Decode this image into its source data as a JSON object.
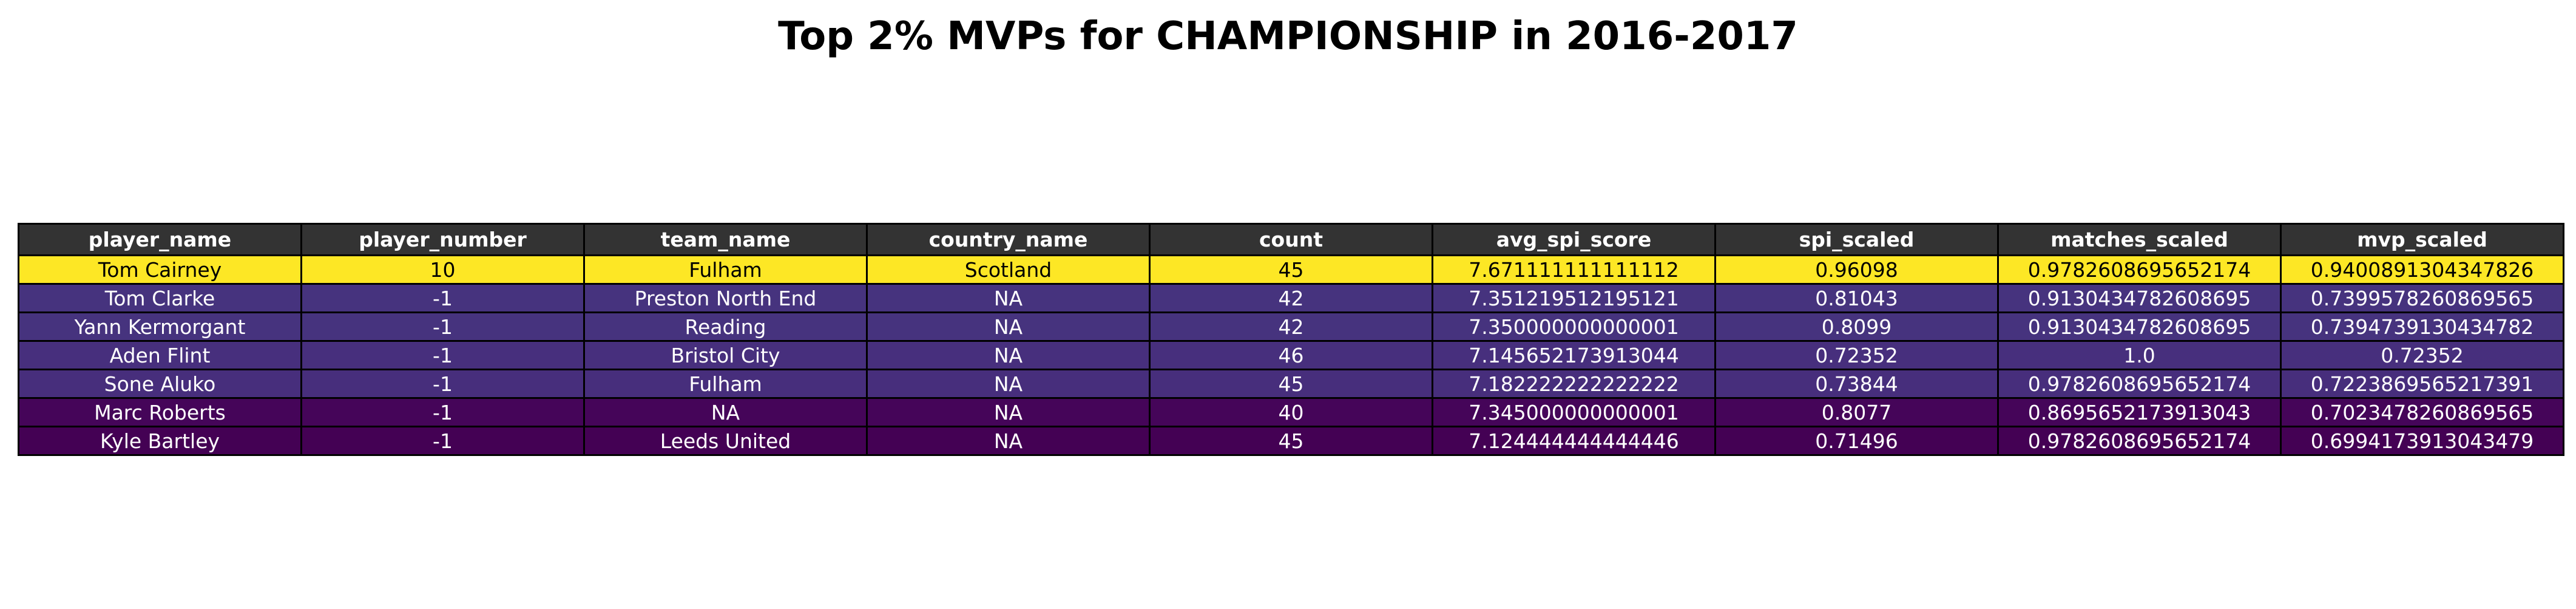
{
  "chart_data": {
    "type": "table",
    "title": "Top 2% MVPs for CHAMPIONSHIP in 2016-2017",
    "columns": [
      "player_name",
      "player_number",
      "team_name",
      "country_name",
      "count",
      "avg_spi_score",
      "spi_scaled",
      "matches_scaled",
      "mvp_scaled"
    ],
    "rows": [
      [
        "Tom Cairney",
        "10",
        "Fulham",
        "Scotland",
        "45",
        "7.671111111111112",
        "0.96098",
        "0.9782608695652174",
        "0.9400891304347826"
      ],
      [
        "Tom Clarke",
        "-1",
        "Preston North End",
        "NA",
        "42",
        "7.351219512195121",
        "0.81043",
        "0.9130434782608695",
        "0.7399578260869565"
      ],
      [
        "Yann Kermorgant",
        "-1",
        "Reading",
        "NA",
        "42",
        "7.350000000000001",
        "0.8099",
        "0.9130434782608695",
        "0.7394739130434782"
      ],
      [
        "Aden Flint",
        "-1",
        "Bristol City",
        "NA",
        "46",
        "7.145652173913044",
        "0.72352",
        "1.0",
        "0.72352"
      ],
      [
        "Sone Aluko",
        "-1",
        "Fulham",
        "NA",
        "45",
        "7.182222222222222",
        "0.73844",
        "0.9782608695652174",
        "0.7223869565217391"
      ],
      [
        "Marc Roberts",
        "-1",
        "NA",
        "NA",
        "40",
        "7.345000000000001",
        "0.8077",
        "0.8695652173913043",
        "0.7023478260869565"
      ],
      [
        "Kyle Bartley",
        "-1",
        "Leeds United",
        "NA",
        "45",
        "7.124444444444446",
        "0.71496",
        "0.9782608695652174",
        "0.6994173913043479"
      ]
    ],
    "colormap": "viridis",
    "color_by": "mvp_scaled",
    "colors": {
      "header_bg": "#333333",
      "header_text": "#ffffff",
      "border": "#000000",
      "row_bg": [
        "#fde725",
        "#46337e",
        "#46337e",
        "#472f7d",
        "#472e7c",
        "#450559",
        "#440154"
      ],
      "row_text": [
        "#000000",
        "#ffffff",
        "#ffffff",
        "#ffffff",
        "#ffffff",
        "#ffffff",
        "#ffffff"
      ]
    }
  }
}
